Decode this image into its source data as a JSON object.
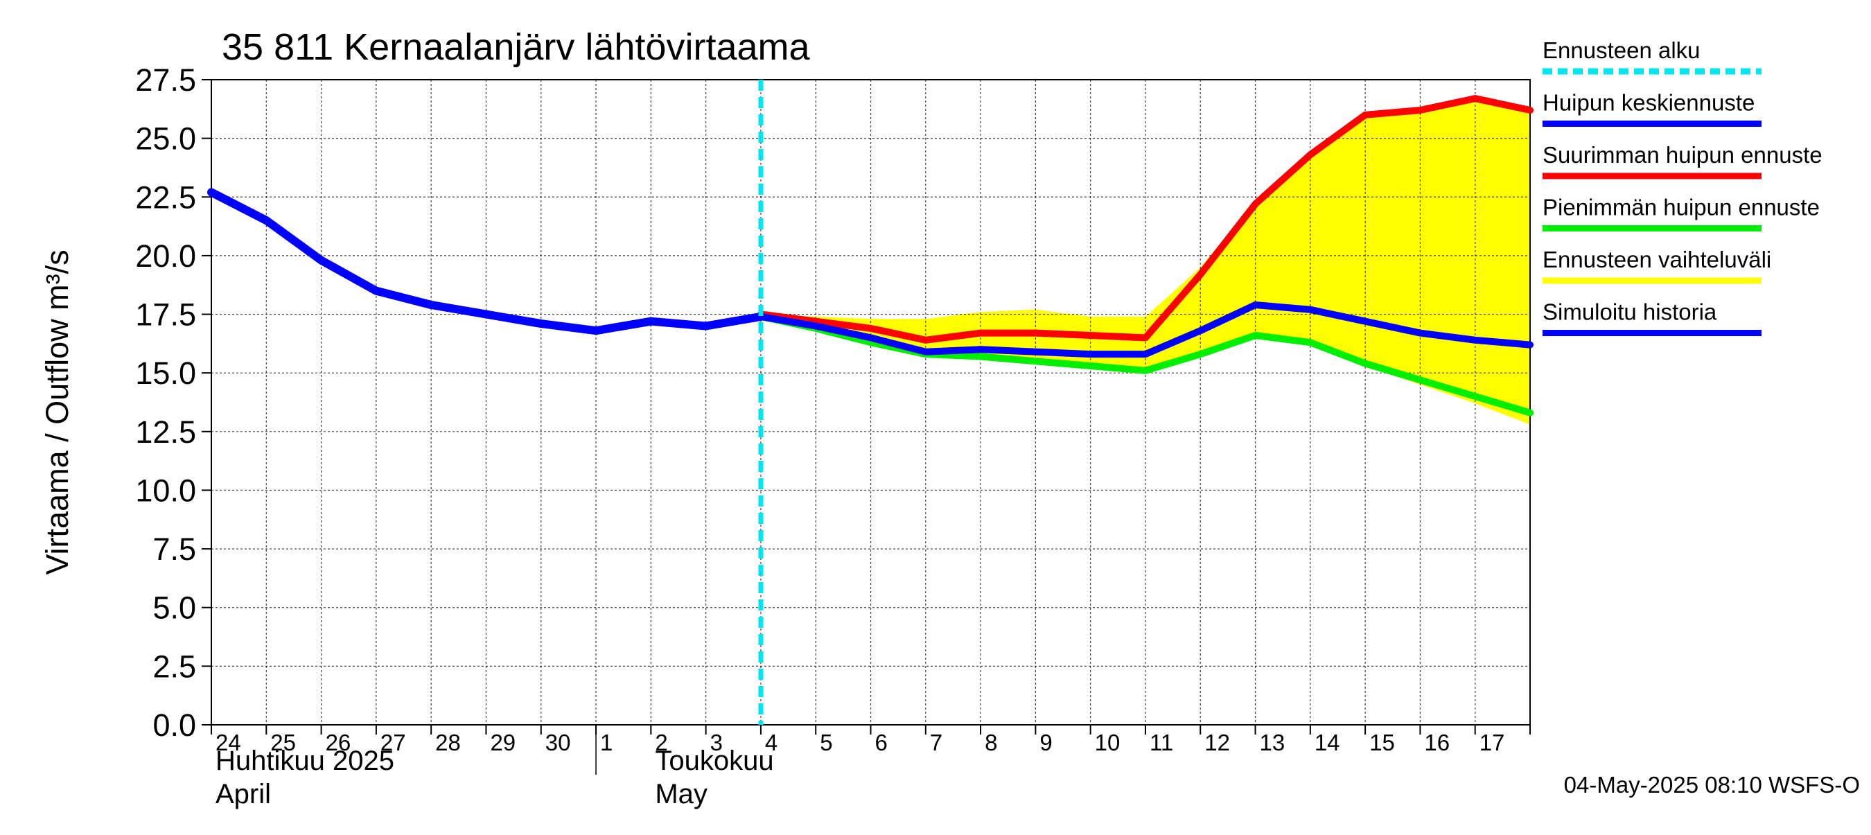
{
  "chart_data": {
    "type": "line",
    "title": "35 811 Kernaalanjärv lähtövirtaama",
    "ylabel": "Virtaama / Outflow    m³/s",
    "ylim": [
      0,
      27.5
    ],
    "yticks": [
      0,
      2.5,
      5,
      7.5,
      10,
      12.5,
      15,
      17.5,
      20,
      22.5,
      25,
      27.5
    ],
    "ytick_labels": [
      "0.0",
      "2.5",
      "5.0",
      "7.5",
      "10.0",
      "12.5",
      "15.0",
      "17.5",
      "20.0",
      "22.5",
      "25.0",
      "27.5"
    ],
    "x_range_days": [
      0,
      24
    ],
    "day_labels": [
      "24",
      "25",
      "26",
      "27",
      "28",
      "29",
      "30",
      "1",
      "2",
      "3",
      "4",
      "5",
      "6",
      "7",
      "8",
      "9",
      "10",
      "11",
      "12",
      "13",
      "14",
      "15",
      "16",
      "17"
    ],
    "month_labels": [
      {
        "line1": "Huhtikuu  2025",
        "line2": "April",
        "day_offset": 0
      },
      {
        "line1": "Toukokuu",
        "line2": "May",
        "day_offset": 8
      }
    ],
    "month_boundary_day": 7,
    "forecast_start_day": 10,
    "grid": true,
    "series": [
      {
        "name": "Simuloitu historia",
        "color": "#0000ff",
        "x": [
          0,
          1,
          2,
          3,
          4,
          5,
          6,
          7,
          8,
          9,
          10
        ],
        "values": [
          22.7,
          21.5,
          19.8,
          18.5,
          17.9,
          17.5,
          17.1,
          16.8,
          17.2,
          17.0,
          17.4
        ]
      },
      {
        "name": "Suurimman huipun ennuste",
        "color": "#ff0000",
        "x": [
          10,
          11,
          12,
          13,
          14,
          15,
          16,
          17,
          18,
          19,
          20,
          21,
          22,
          23,
          24
        ],
        "values": [
          17.5,
          17.2,
          16.9,
          16.4,
          16.7,
          16.7,
          16.6,
          16.5,
          19.2,
          22.2,
          24.3,
          26.0,
          26.2,
          26.7,
          26.2
        ]
      },
      {
        "name": "Huipun keskiennuste",
        "color": "#0000ff",
        "x": [
          10,
          11,
          12,
          13,
          14,
          15,
          16,
          17,
          18,
          19,
          20,
          21,
          22,
          23,
          24
        ],
        "values": [
          17.4,
          17.0,
          16.5,
          15.9,
          16.0,
          15.9,
          15.8,
          15.8,
          16.8,
          17.9,
          17.7,
          17.2,
          16.7,
          16.4,
          16.2
        ]
      },
      {
        "name": "Pienimmän huipun ennuste",
        "color": "#00ee00",
        "x": [
          10,
          11,
          12,
          13,
          14,
          15,
          16,
          17,
          18,
          19,
          20,
          21,
          22,
          23,
          24
        ],
        "values": [
          17.4,
          16.9,
          16.3,
          15.8,
          15.7,
          15.5,
          15.3,
          15.1,
          15.8,
          16.6,
          16.3,
          15.4,
          14.7,
          14.0,
          13.3
        ]
      }
    ],
    "band": {
      "name": "Ennusteen vaihteluväli",
      "color": "#ffff00",
      "x": [
        10,
        11,
        12,
        13,
        14,
        15,
        16,
        17,
        18,
        19,
        20,
        21,
        22,
        23,
        24
      ],
      "upper": [
        17.5,
        17.4,
        17.3,
        17.3,
        17.6,
        17.7,
        17.4,
        17.4,
        19.5,
        22.3,
        24.4,
        26.1,
        26.3,
        26.8,
        26.3
      ],
      "lower": [
        17.3,
        16.8,
        16.2,
        15.7,
        15.6,
        15.4,
        15.2,
        15.0,
        15.7,
        16.5,
        16.2,
        15.3,
        14.5,
        13.7,
        12.8
      ]
    },
    "legend": {
      "placement": "right",
      "entries": [
        {
          "label": "Ennusteen alku",
          "color": "#00e5ee",
          "style": "dashed"
        },
        {
          "label": "Huipun keskiennuste",
          "color": "#0000ff",
          "style": "solid"
        },
        {
          "label": "Suurimman huipun ennuste",
          "color": "#ff0000",
          "style": "solid"
        },
        {
          "label": "Pienimmän huipun ennuste",
          "color": "#00ee00",
          "style": "solid"
        },
        {
          "label": "Ennusteen vaihteluväli",
          "color": "#ffff00",
          "style": "solid"
        },
        {
          "label": "Simuloitu historia",
          "color": "#0000ff",
          "style": "solid"
        }
      ]
    },
    "footer": "04-May-2025 08:10 WSFS-O",
    "forecast_line_color": "#00e5ee"
  }
}
